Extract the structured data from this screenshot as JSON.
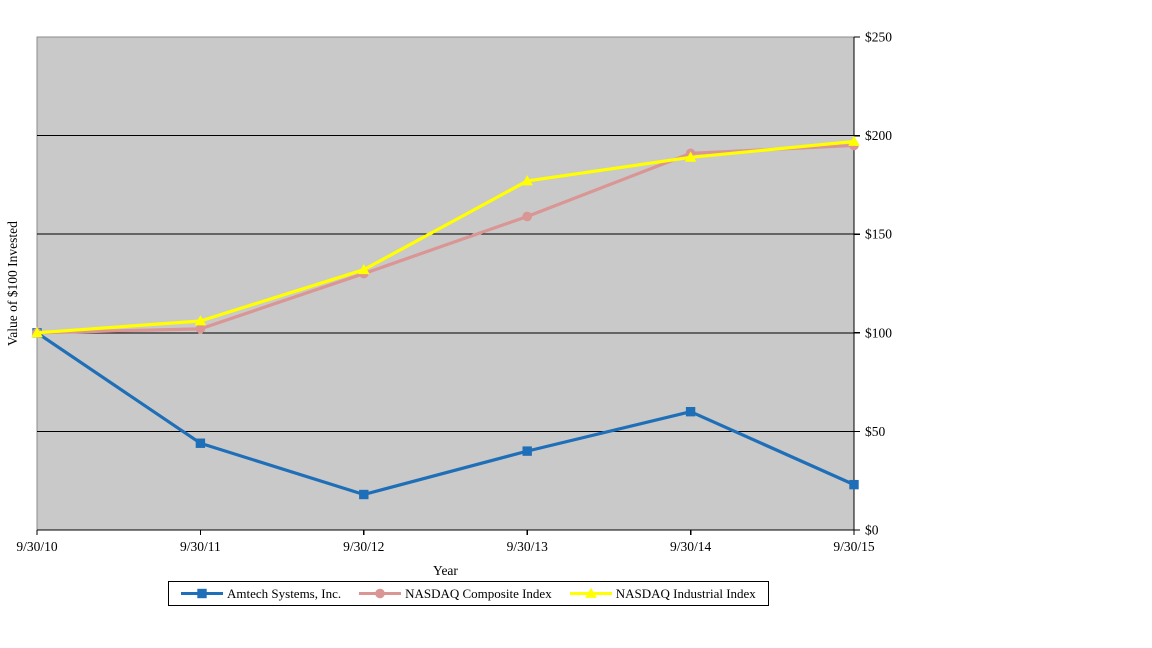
{
  "chart_data": {
    "type": "line",
    "title": "",
    "xlabel": "Year",
    "ylabel": "Value of $100 Invested",
    "categories": [
      "9/30/10",
      "9/30/11",
      "9/30/12",
      "9/30/13",
      "9/30/14",
      "9/30/15"
    ],
    "series": [
      {
        "name": "Amtech Systems, Inc.",
        "color": "#1F6FB8",
        "marker": "square",
        "values": [
          100,
          44,
          18,
          40,
          60,
          23
        ]
      },
      {
        "name": "NASDAQ Composite Index",
        "color": "#D99694",
        "marker": "circle",
        "values": [
          100,
          102,
          130,
          159,
          191,
          195
        ]
      },
      {
        "name": "NASDAQ Industrial Index",
        "color": "#FFFF00",
        "marker": "triangle",
        "values": [
          100,
          106,
          132,
          177,
          189,
          197
        ]
      }
    ],
    "ylim": [
      0,
      250
    ],
    "ytick_step": 50,
    "ytick_labels": [
      "$0",
      "$50",
      "$100",
      "$150",
      "$200",
      "$250"
    ],
    "y_axis_side": "right",
    "grid": "horizontal",
    "legend_position": "bottom",
    "colors": {
      "plot_background": "#C9C9C9",
      "plot_border": "#8C8C8C",
      "gridline": "#000000",
      "axis": "#000000",
      "text": "#000000"
    }
  }
}
